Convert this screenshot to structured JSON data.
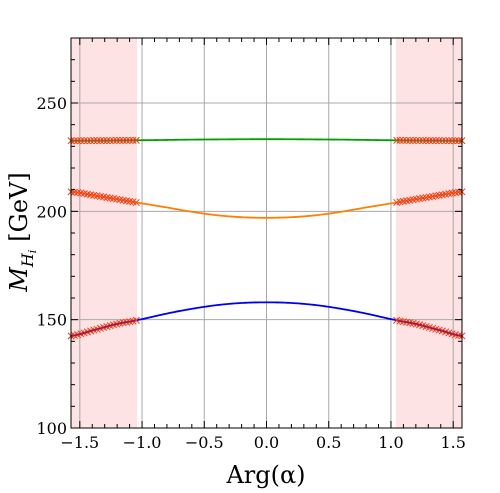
{
  "chart_data": {
    "type": "line",
    "xlabel": "Arg(α)",
    "ylabel": {
      "main": "M",
      "sub": "H",
      "subsub": "i",
      "unit": "[GeV]"
    },
    "xlim": [
      -1.5708,
      1.5708
    ],
    "ylim": [
      100,
      280
    ],
    "x_ticks": [
      {
        "value": -1.5,
        "label": "−1.5"
      },
      {
        "value": -1.0,
        "label": "−1.0"
      },
      {
        "value": -0.5,
        "label": "−0.5"
      },
      {
        "value": 0.0,
        "label": "0.0"
      },
      {
        "value": 0.5,
        "label": "0.5"
      },
      {
        "value": 1.0,
        "label": "1.0"
      },
      {
        "value": 1.5,
        "label": "1.5"
      }
    ],
    "y_ticks": [
      {
        "value": 100,
        "label": "100"
      },
      {
        "value": 150,
        "label": "150"
      },
      {
        "value": 200,
        "label": "200"
      },
      {
        "value": 250,
        "label": "250"
      }
    ],
    "grid": true,
    "excluded_regions": [
      {
        "x_from": -1.5708,
        "x_to": -1.04,
        "color": "#fde3e3"
      },
      {
        "x_from": 1.04,
        "x_to": 1.5708,
        "color": "#fde3e3"
      }
    ],
    "series": [
      {
        "color": "#0000ee",
        "marker_color": "#e8401a",
        "marker_overlap_color": "#a0184c",
        "points": [
          [
            -1.57,
            142.5
          ],
          [
            -1.4,
            145.0
          ],
          [
            -1.2,
            148.0
          ],
          [
            -1.04,
            149.8
          ],
          [
            -0.8,
            152.8
          ],
          [
            -0.6,
            155.0
          ],
          [
            -0.4,
            156.7
          ],
          [
            -0.2,
            157.7
          ],
          [
            0.0,
            158.0
          ],
          [
            0.2,
            157.7
          ],
          [
            0.4,
            156.7
          ],
          [
            0.6,
            155.0
          ],
          [
            0.8,
            152.8
          ],
          [
            1.04,
            149.8
          ],
          [
            1.2,
            148.0
          ],
          [
            1.4,
            145.0
          ],
          [
            1.57,
            142.5
          ]
        ]
      },
      {
        "color": "#ff8000",
        "marker_color": "#e8401a",
        "points": [
          [
            -1.57,
            209.0
          ],
          [
            -1.4,
            207.5
          ],
          [
            -1.2,
            205.6
          ],
          [
            -1.04,
            204.0
          ],
          [
            -0.8,
            201.8
          ],
          [
            -0.6,
            199.8
          ],
          [
            -0.4,
            198.2
          ],
          [
            -0.2,
            197.3
          ],
          [
            0.0,
            197.0
          ],
          [
            0.2,
            197.3
          ],
          [
            0.4,
            198.2
          ],
          [
            0.6,
            199.8
          ],
          [
            0.8,
            201.8
          ],
          [
            1.04,
            204.0
          ],
          [
            1.2,
            205.6
          ],
          [
            1.4,
            207.5
          ],
          [
            1.57,
            209.0
          ]
        ]
      },
      {
        "color": "#00a000",
        "marker_color": "#e8401a",
        "points": [
          [
            -1.57,
            232.6
          ],
          [
            -1.2,
            232.7
          ],
          [
            -1.04,
            232.8
          ],
          [
            -0.6,
            233.1
          ],
          [
            0.0,
            233.3
          ],
          [
            0.6,
            233.1
          ],
          [
            1.04,
            232.8
          ],
          [
            1.2,
            232.7
          ],
          [
            1.57,
            232.6
          ]
        ]
      }
    ]
  }
}
